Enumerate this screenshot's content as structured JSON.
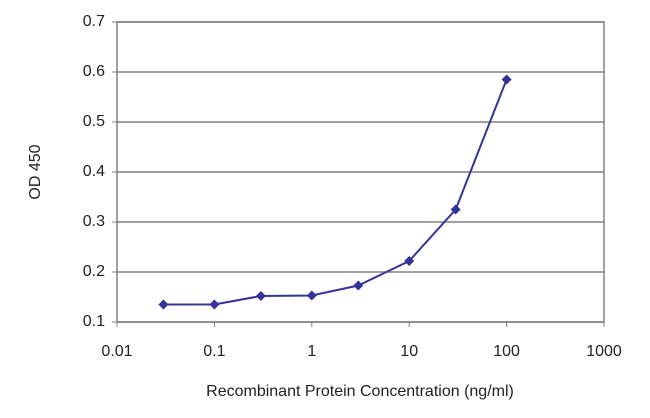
{
  "chart_data": {
    "type": "line",
    "x_label": "Recombinant Protein Concentration (ng/ml)",
    "y_label": "OD 450",
    "x": [
      0.03,
      0.1,
      0.3,
      1,
      3,
      10,
      30,
      100
    ],
    "values": [
      0.135,
      0.135,
      0.152,
      0.153,
      0.173,
      0.222,
      0.325,
      0.585
    ],
    "color": "#333399",
    "xlim": [
      0.01,
      1000
    ],
    "xticks": [
      0.01,
      0.1,
      1,
      10,
      100,
      1000
    ],
    "xscale": "log",
    "ylim": [
      0.1,
      0.7
    ],
    "yticks": [
      0.1,
      0.2,
      0.3,
      0.4,
      0.5,
      0.6,
      0.7
    ],
    "grid": true
  }
}
